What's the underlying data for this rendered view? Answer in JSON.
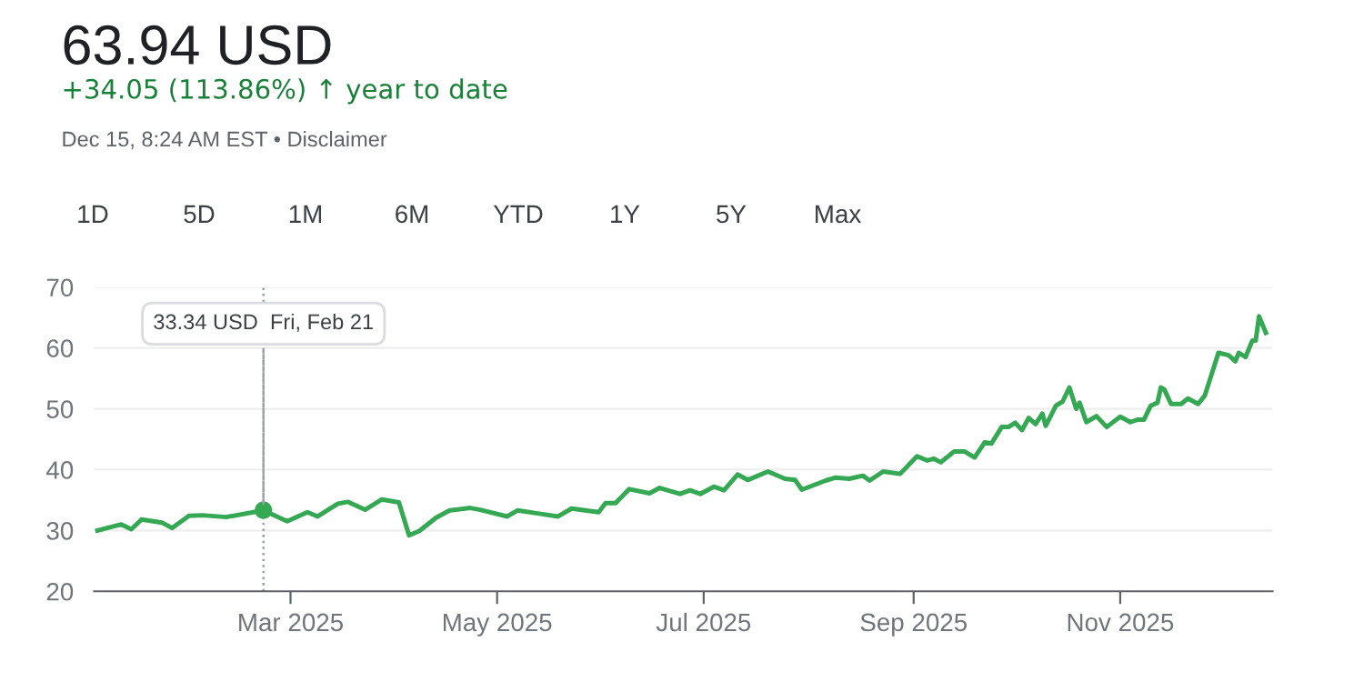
{
  "chart_data": {
    "type": "line",
    "title": "63.94 USD",
    "subtitle": "+34.05 (113.86%) ↑ year to date",
    "annotations": [
      "Dec 15, 8:24 AM EST • Disclaimer",
      "1D",
      "5D",
      "1M",
      "6M",
      "YTD",
      "1Y",
      "5Y",
      "Max",
      {
        "text": "33.34 USD  Fri, Feb 21",
        "x": "2025-02-21",
        "y": 33.34
      }
    ],
    "x": [
      "2025-01-03",
      "2025-01-10",
      "2025-01-13",
      "2025-01-16",
      "2025-01-22",
      "2025-01-25",
      "2025-01-30",
      "2025-02-03",
      "2025-02-10",
      "2025-02-21",
      "2025-02-28",
      "2025-03-06",
      "2025-03-09",
      "2025-03-15",
      "2025-03-18",
      "2025-03-23",
      "2025-03-28",
      "2025-04-02",
      "2025-04-05",
      "2025-04-08",
      "2025-04-13",
      "2025-04-17",
      "2025-04-23",
      "2025-04-26",
      "2025-05-04",
      "2025-05-07",
      "2025-05-13",
      "2025-05-19",
      "2025-05-23",
      "2025-05-31",
      "2025-06-02",
      "2025-06-05",
      "2025-06-09",
      "2025-06-15",
      "2025-06-18",
      "2025-06-24",
      "2025-06-27",
      "2025-06-30",
      "2025-07-04",
      "2025-07-07",
      "2025-07-11",
      "2025-07-14",
      "2025-07-20",
      "2025-07-25",
      "2025-07-28",
      "2025-07-30",
      "2025-08-06",
      "2025-08-09",
      "2025-08-13",
      "2025-08-17",
      "2025-08-19",
      "2025-08-23",
      "2025-08-28",
      "2025-09-02",
      "2025-09-05",
      "2025-09-07",
      "2025-09-09",
      "2025-09-13",
      "2025-09-16",
      "2025-09-19",
      "2025-09-22",
      "2025-09-24",
      "2025-09-27",
      "2025-09-29",
      "2025-10-01",
      "2025-10-03",
      "2025-10-05",
      "2025-10-07",
      "2025-10-09",
      "2025-10-10",
      "2025-10-13",
      "2025-10-15",
      "2025-10-17",
      "2025-10-19",
      "2025-10-20",
      "2025-10-22",
      "2025-10-25",
      "2025-10-28",
      "2025-11-01",
      "2025-11-04",
      "2025-11-06",
      "2025-11-08",
      "2025-11-10",
      "2025-11-12",
      "2025-11-13",
      "2025-11-14",
      "2025-11-16",
      "2025-11-19",
      "2025-11-21",
      "2025-11-24",
      "2025-11-26",
      "2025-11-30",
      "2025-12-03",
      "2025-12-05",
      "2025-12-06",
      "2025-12-08",
      "2025-12-10",
      "2025-12-11",
      "2025-12-12",
      "2025-12-14"
    ],
    "series": [
      {
        "color": "#34a853",
        "values": [
          30.0,
          31.0,
          30.2,
          31.8,
          31.3,
          30.4,
          32.4,
          32.5,
          32.2,
          33.3,
          31.5,
          33.0,
          32.3,
          34.4,
          34.7,
          33.4,
          35.1,
          34.6,
          29.2,
          29.9,
          32.1,
          33.3,
          33.7,
          33.4,
          32.3,
          33.3,
          32.8,
          32.3,
          33.6,
          33.0,
          34.5,
          34.5,
          36.8,
          36.1,
          37.0,
          36.0,
          36.6,
          36.0,
          37.2,
          36.6,
          39.2,
          38.3,
          39.7,
          38.5,
          38.3,
          36.7,
          38.2,
          38.7,
          38.5,
          39.0,
          38.2,
          39.7,
          39.3,
          42.2,
          41.5,
          41.8,
          41.2,
          43.0,
          43.0,
          42.0,
          44.5,
          44.3,
          47.0,
          47.0,
          47.7,
          46.5,
          48.5,
          47.5,
          49.2,
          47.2,
          50.5,
          51.2,
          53.5,
          50.0,
          51.0,
          47.8,
          48.8,
          47.0,
          48.7,
          47.8,
          48.2,
          48.2,
          50.5,
          51.0,
          53.5,
          53.2,
          50.8,
          50.8,
          51.7,
          50.8,
          52.2,
          59.2,
          58.8,
          57.8,
          59.2,
          58.5,
          61.2,
          61.2,
          65.2,
          62.5
        ]
      }
    ],
    "xlim": [
      "2025-01-02",
      "2025-12-16"
    ],
    "xticks": [
      {
        "value": "2025-03-01",
        "label": "Mar 2025"
      },
      {
        "value": "2025-05-01",
        "label": "May 2025"
      },
      {
        "value": "2025-07-01",
        "label": "Jul 2025"
      },
      {
        "value": "2025-09-01",
        "label": "Sep 2025"
      },
      {
        "value": "2025-11-01",
        "label": "Nov 2025"
      }
    ],
    "ylim": [
      20,
      70
    ],
    "yticks": [
      20,
      30,
      40,
      50,
      60,
      70
    ],
    "grid": "y",
    "ref_lines": [
      {
        "axis": "x",
        "value": "2025-02-21",
        "line_style": "dotted",
        "color": "#9aa0a6"
      }
    ]
  }
}
